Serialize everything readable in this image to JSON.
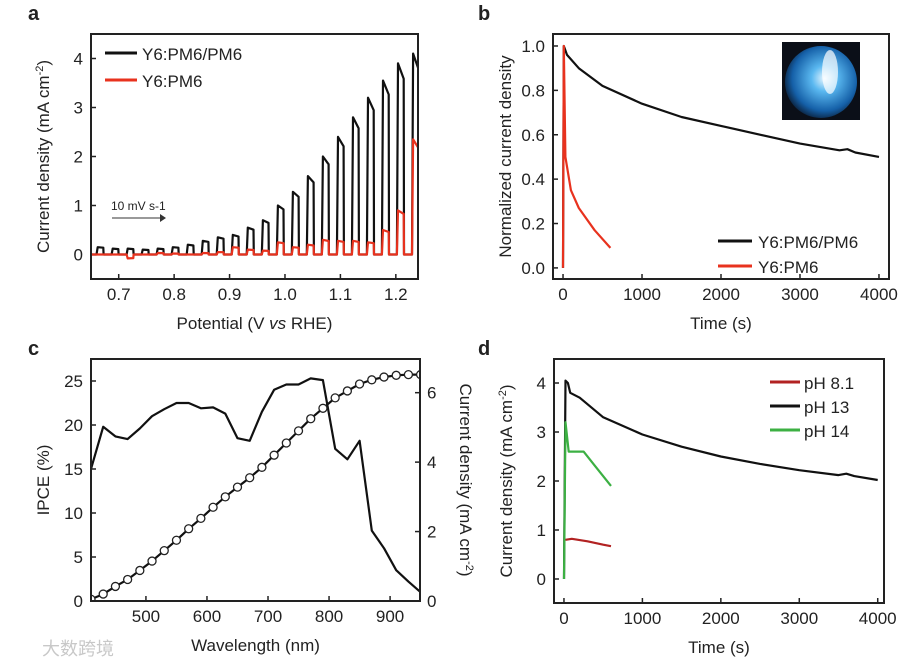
{
  "watermark": "大数跨境",
  "chart_data": [
    {
      "panel": "a",
      "type": "line",
      "xlabel": "Potential (V vs RHE)",
      "ylabel": "Current density (mA cm-2)",
      "xlim": [
        0.65,
        1.24
      ],
      "ylim": [
        -0.5,
        4.5
      ],
      "xticks": [
        0.7,
        0.8,
        0.9,
        1.0,
        1.1,
        1.2
      ],
      "yticks": [
        0,
        1,
        2,
        3,
        4
      ],
      "annotation": "10 mV s-1",
      "pulse_start": 0.66,
      "pulse_step": 0.0271,
      "series": [
        {
          "name": "Y6:PM6/PM6",
          "color": "#111111",
          "pulse_peaks": [
            0.15,
            0.12,
            0.12,
            0.1,
            0.12,
            0.15,
            0.2,
            0.28,
            0.35,
            0.4,
            0.55,
            0.7,
            1.0,
            1.28,
            1.6,
            2.0,
            2.4,
            2.8,
            3.2,
            3.55,
            3.9,
            4.1
          ]
        },
        {
          "name": "Y6:PM6",
          "color": "#e8321e",
          "pulse_peaks": [
            0.0,
            0.0,
            -0.08,
            0.0,
            0.03,
            0.02,
            0.0,
            0.03,
            0.05,
            0.15,
            0.1,
            0.08,
            0.25,
            0.15,
            0.2,
            0.3,
            0.28,
            0.28,
            0.25,
            0.5,
            0.9,
            2.35,
            1.0
          ]
        }
      ]
    },
    {
      "panel": "b",
      "type": "line",
      "xlabel": "Time (s)",
      "ylabel": "Normalized current density",
      "xlim": [
        -127,
        4127
      ],
      "ylim": [
        -0.05,
        1.054
      ],
      "xticks": [
        0,
        1000,
        2000,
        3000,
        4000
      ],
      "yticks": [
        0.0,
        0.2,
        0.4,
        0.6,
        0.8,
        1.0
      ],
      "legend": "bottom-right",
      "series": [
        {
          "name": "Y6:PM6/PM6",
          "color": "#111111",
          "x": [
            0,
            10,
            50,
            200,
            500,
            1000,
            1500,
            2000,
            2500,
            3000,
            3500,
            3600,
            3700,
            4000
          ],
          "y": [
            0,
            1.0,
            0.96,
            0.9,
            0.82,
            0.74,
            0.68,
            0.64,
            0.6,
            0.56,
            0.53,
            0.535,
            0.52,
            0.5
          ]
        },
        {
          "name": "Y6:PM6",
          "color": "#e8321e",
          "x": [
            0,
            10,
            30,
            100,
            200,
            400,
            600
          ],
          "y": [
            0,
            1.0,
            0.5,
            0.35,
            0.27,
            0.17,
            0.09
          ]
        }
      ]
    },
    {
      "panel": "c",
      "type": "line",
      "xlabel": "Wavelength (nm)",
      "ylabel": "IPCE (%)",
      "ylabel_right": "Current density (mA cm-2)",
      "xlim": [
        410,
        949
      ],
      "ylim": [
        0,
        27.5
      ],
      "ylim_right": [
        0,
        6.97
      ],
      "xticks": [
        500,
        600,
        700,
        800,
        900
      ],
      "yticks": [
        0,
        5,
        10,
        15,
        20,
        25
      ],
      "yticks_right": [
        0,
        2,
        4,
        6
      ],
      "series": [
        {
          "name": "IPCE",
          "color": "#111111",
          "x": [
            410,
            430,
            450,
            470,
            490,
            510,
            530,
            550,
            570,
            590,
            610,
            630,
            650,
            670,
            690,
            710,
            730,
            750,
            770,
            790,
            810,
            830,
            850,
            870,
            890,
            910,
            930,
            950
          ],
          "y": [
            15,
            19.8,
            18.7,
            18.4,
            19.6,
            21,
            21.8,
            22.5,
            22.5,
            21.9,
            22,
            21.3,
            18.5,
            18.2,
            21.5,
            24,
            24.6,
            24.6,
            25.3,
            25.1,
            17.3,
            16.1,
            18.2,
            8,
            6,
            3.5,
            2.2,
            1
          ]
        },
        {
          "name": "Integrated current density",
          "color": "#111111",
          "axis": "right",
          "markers": "open-circle",
          "x": [
            410,
            430,
            450,
            470,
            490,
            510,
            530,
            550,
            570,
            590,
            610,
            630,
            650,
            670,
            690,
            710,
            730,
            750,
            770,
            790,
            810,
            830,
            850,
            870,
            890,
            910,
            930,
            950
          ],
          "y": [
            0.05,
            0.2,
            0.42,
            0.62,
            0.88,
            1.15,
            1.45,
            1.75,
            2.08,
            2.38,
            2.7,
            3.0,
            3.28,
            3.55,
            3.85,
            4.2,
            4.55,
            4.9,
            5.25,
            5.55,
            5.85,
            6.05,
            6.25,
            6.37,
            6.45,
            6.5,
            6.52,
            6.52
          ]
        }
      ]
    },
    {
      "panel": "d",
      "type": "line",
      "xlabel": "Time (s)",
      "ylabel": "Current density (mA cm-2)",
      "xlim": [
        -127,
        4080
      ],
      "ylim": [
        -0.49,
        4.49
      ],
      "xticks": [
        0,
        1000,
        2000,
        3000,
        4000
      ],
      "yticks": [
        0,
        1,
        2,
        3,
        4
      ],
      "legend": "top-right",
      "series": [
        {
          "name": "pH 8.1",
          "color": "#b22222",
          "x": [
            20,
            100,
            300,
            500,
            600
          ],
          "y": [
            0.8,
            0.82,
            0.77,
            0.7,
            0.67
          ]
        },
        {
          "name": "pH 13",
          "color": "#111111",
          "x": [
            0,
            20,
            50,
            80,
            200,
            500,
            1000,
            1500,
            2000,
            2500,
            3000,
            3500,
            3600,
            3700,
            4000
          ],
          "y": [
            0,
            4.05,
            4.0,
            3.8,
            3.7,
            3.3,
            2.95,
            2.7,
            2.5,
            2.35,
            2.22,
            2.12,
            2.15,
            2.1,
            2.02
          ]
        },
        {
          "name": "pH 14",
          "color": "#3cb043",
          "x": [
            0,
            20,
            60,
            150,
            250,
            400,
            600
          ],
          "y": [
            0,
            3.2,
            2.6,
            2.6,
            2.6,
            2.3,
            1.9
          ]
        }
      ]
    }
  ]
}
